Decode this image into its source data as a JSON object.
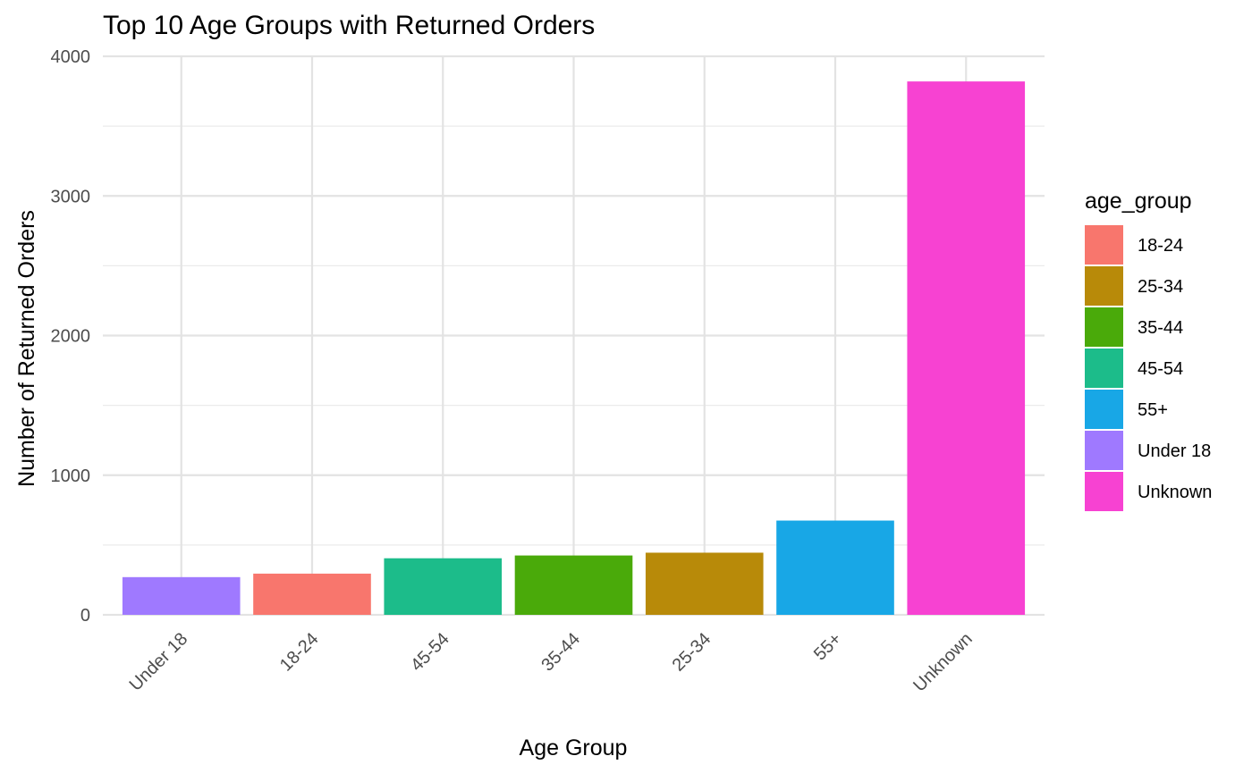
{
  "chart_data": {
    "type": "bar",
    "title": "Top 10 Age Groups with Returned Orders",
    "xlabel": "Age Group",
    "ylabel": "Number of Returned Orders",
    "categories": [
      "Under 18",
      "18-24",
      "45-54",
      "35-44",
      "25-34",
      "55+",
      "Unknown"
    ],
    "values": [
      270,
      295,
      405,
      425,
      445,
      675,
      3820
    ],
    "bar_colors": [
      "#9F79FF",
      "#F8766D",
      "#1CBC8A",
      "#4AAA0A",
      "#B88A09",
      "#18A7E6",
      "#F742D2"
    ],
    "ylim": [
      0,
      4000
    ],
    "yticks": [
      0,
      1000,
      2000,
      3000,
      4000
    ],
    "ytick_labels": [
      "0",
      "1000",
      "2000",
      "3000",
      "4000"
    ],
    "grid": true,
    "legend": {
      "title": "age_group",
      "placement": "right",
      "entries": [
        {
          "label": "18-24",
          "color": "#F8766D"
        },
        {
          "label": "25-34",
          "color": "#B88A09"
        },
        {
          "label": "35-44",
          "color": "#4AAA0A"
        },
        {
          "label": "45-54",
          "color": "#1CBC8A"
        },
        {
          "label": "55+",
          "color": "#18A7E6"
        },
        {
          "label": "Under 18",
          "color": "#9F79FF"
        },
        {
          "label": "Unknown",
          "color": "#F742D2"
        }
      ]
    }
  }
}
